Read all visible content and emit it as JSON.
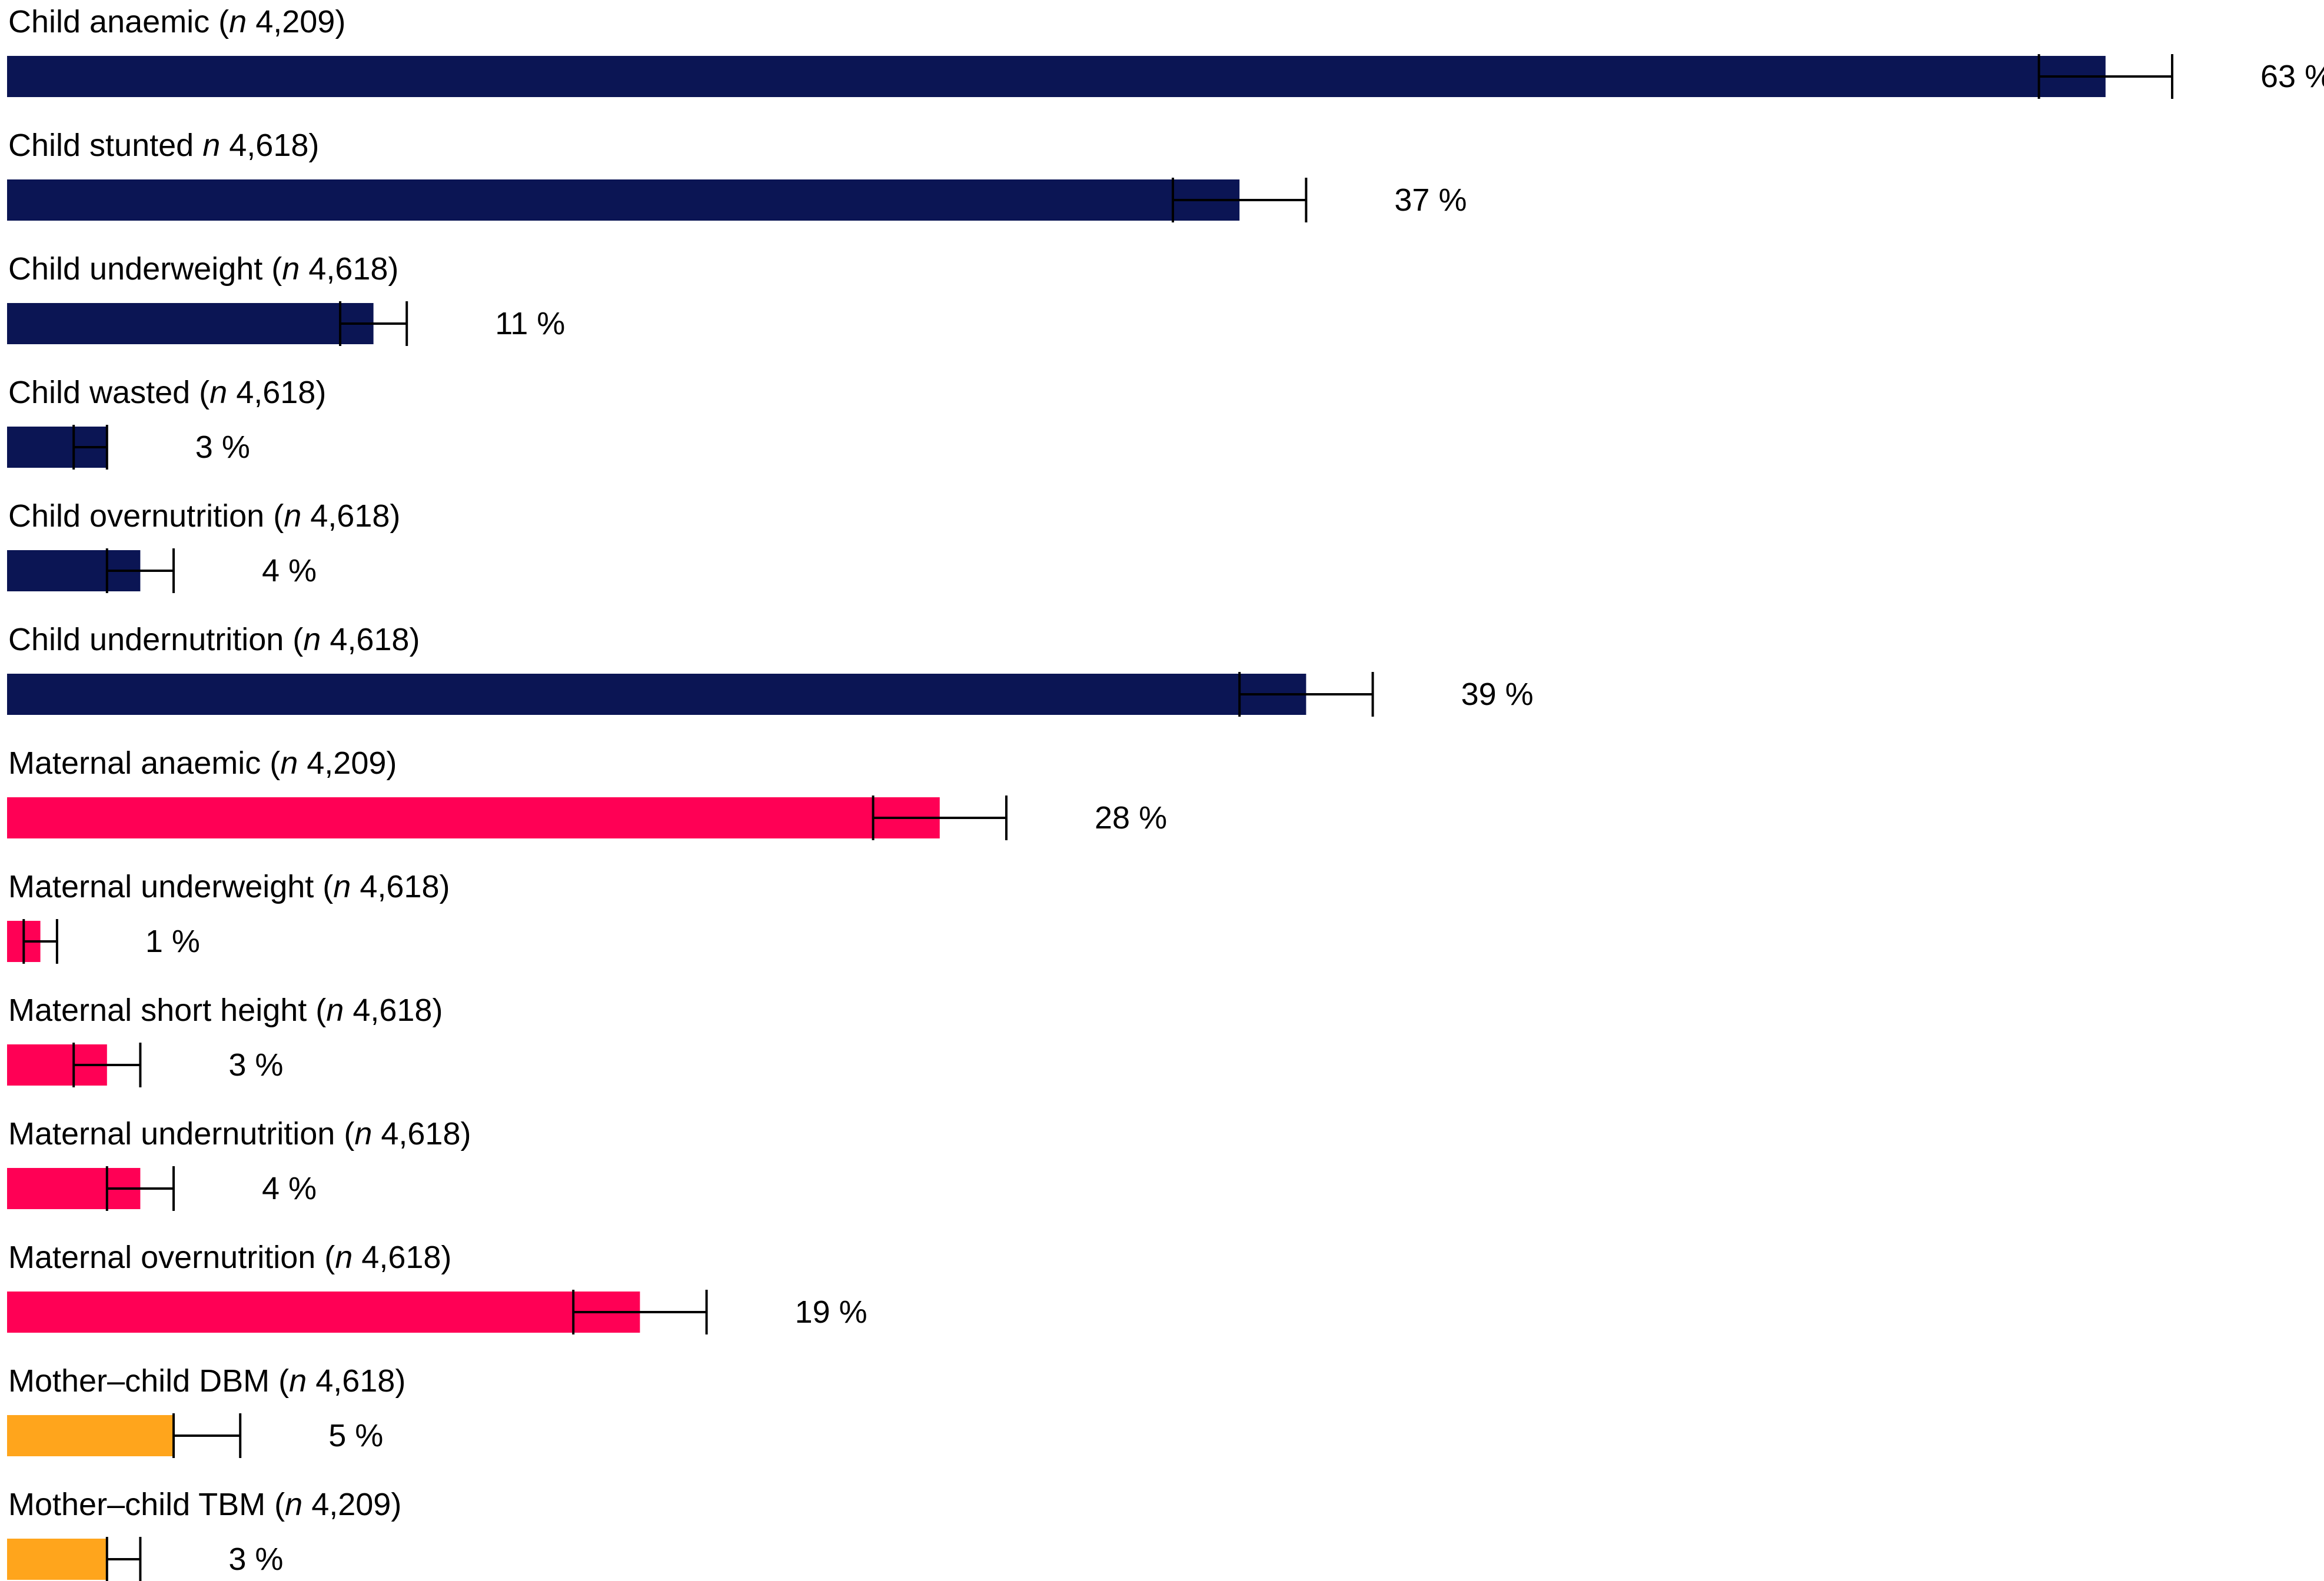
{
  "chart_data": {
    "type": "bar",
    "orientation": "horizontal",
    "title": "",
    "xlabel": "",
    "ylabel": "",
    "xlim": [
      0,
      100
    ],
    "grid": false,
    "legend": "none",
    "value_suffix": " %",
    "categories": [
      {
        "name": "Child anaemic",
        "n": "4,209",
        "value": 63,
        "ci": [
          61,
          65
        ],
        "color": "#0b1554"
      },
      {
        "name": "Child stunted",
        "n": "4,618",
        "value": 37,
        "ci": [
          35,
          39
        ],
        "color": "#0b1554",
        "missing_open_paren": true
      },
      {
        "name": "Child underweight",
        "n": "4,618",
        "value": 11,
        "ci": [
          10,
          12
        ],
        "color": "#0b1554"
      },
      {
        "name": "Child wasted",
        "n": "4,618",
        "value": 3,
        "ci": [
          2,
          3
        ],
        "color": "#0b1554"
      },
      {
        "name": "Child overnutrition",
        "n": "4,618",
        "value": 4,
        "ci": [
          3,
          5
        ],
        "color": "#0b1554"
      },
      {
        "name": "Child undernutrition",
        "n": "4,618",
        "value": 39,
        "ci": [
          37,
          41
        ],
        "color": "#0b1554"
      },
      {
        "name": "Maternal anaemic",
        "n": "4,209",
        "value": 28,
        "ci": [
          26,
          30
        ],
        "color": "#ff0055"
      },
      {
        "name": "Maternal underweight",
        "n": "4,618",
        "value": 1,
        "ci": [
          0.5,
          1.5
        ],
        "color": "#ff0055"
      },
      {
        "name": "Maternal short height",
        "n": "4,618",
        "value": 3,
        "ci": [
          2,
          4
        ],
        "color": "#ff0055"
      },
      {
        "name": "Maternal undernutrition",
        "n": "4,618",
        "value": 4,
        "ci": [
          3,
          5
        ],
        "color": "#ff0055"
      },
      {
        "name": "Maternal overnutrition",
        "n": "4,618",
        "value": 19,
        "ci": [
          17,
          21
        ],
        "color": "#ff0055"
      },
      {
        "name": "Mother–child DBM",
        "n": "4,618",
        "value": 5,
        "ci": [
          5,
          7
        ],
        "color": "#ffa51c"
      },
      {
        "name": "Mother–child TBM",
        "n": "4,209",
        "value": 3,
        "ci": [
          3,
          4
        ],
        "color": "#ffa51c"
      }
    ]
  }
}
